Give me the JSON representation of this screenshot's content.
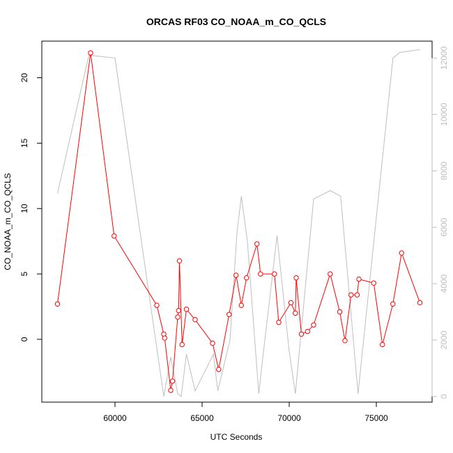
{
  "chart_data": {
    "type": "line",
    "title": "ORCAS RF03 CO_NOAA_m_CO_QCLS",
    "xlabel": "UTC Seconds",
    "ylabel": "CO_NOAA_m_CO_QCLS",
    "xlim": [
      55800,
      78200
    ],
    "ylim": [
      -4.8,
      22.8
    ],
    "y2lim": [
      -200,
      12600
    ],
    "x_ticks": [
      60000,
      65000,
      70000,
      75000
    ],
    "y_ticks": [
      0,
      5,
      10,
      15,
      20
    ],
    "y2_ticks": [
      0,
      2000,
      4000,
      6000,
      8000,
      10000,
      12000
    ],
    "grid": false,
    "series": [
      {
        "color": "#ff0000",
        "marker": "open-circle",
        "axis": "left",
        "x": [
          56700,
          58600,
          59950,
          62400,
          62800,
          62850,
          63200,
          63300,
          63600,
          63650,
          63700,
          63850,
          64100,
          64600,
          65600,
          65950,
          66550,
          66950,
          67250,
          67550,
          68150,
          68350,
          69150,
          69400,
          70100,
          70350,
          70400,
          70700,
          71050,
          71400,
          72350,
          72900,
          73200,
          73550,
          73900,
          74000,
          74850,
          75350,
          75950,
          76450,
          77500
        ],
        "y": [
          2.7,
          21.9,
          7.9,
          2.6,
          0.4,
          0.1,
          -3.9,
          -3.2,
          1.7,
          2.2,
          6.0,
          -0.4,
          2.3,
          1.5,
          -0.3,
          -2.3,
          1.9,
          4.9,
          2.6,
          4.7,
          7.3,
          5.0,
          5.0,
          1.3,
          2.8,
          2.0,
          4.7,
          0.4,
          0.6,
          1.1,
          5.0,
          2.1,
          -0.1,
          3.4,
          3.4,
          4.6,
          4.3,
          -0.4,
          2.7,
          6.6,
          2.8
        ]
      },
      {
        "color": "#bebebe",
        "marker": "none",
        "axis": "right",
        "x": [
          56700,
          58500,
          60000,
          62800,
          63200,
          63600,
          63800,
          64100,
          64600,
          65650,
          65900,
          66600,
          67000,
          67250,
          67600,
          68250,
          68450,
          69300,
          70000,
          70350,
          71400,
          72350,
          72950,
          73950,
          74100,
          75950,
          76350,
          77500
        ],
        "y": [
          7200,
          12100,
          12000,
          0,
          1400,
          100,
          0,
          1500,
          200,
          1500,
          200,
          2000,
          5800,
          7100,
          5500,
          100,
          1200,
          5700,
          1600,
          100,
          7000,
          7300,
          7100,
          100,
          1000,
          12000,
          12200,
          12300
        ]
      }
    ]
  },
  "colors": {
    "primary_series": "#ff0000",
    "secondary_series": "#bebebe",
    "axis": "#000000",
    "right_axis": "#bebebe"
  }
}
